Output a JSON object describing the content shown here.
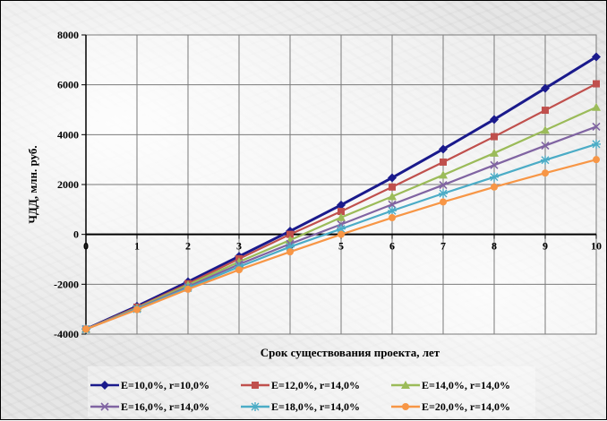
{
  "chart_data": {
    "type": "line",
    "title": "",
    "xlabel": "Срок существования проекта, лет",
    "ylabel": "ЧДД,  млн. руб.",
    "x": [
      0,
      1,
      2,
      3,
      4,
      5,
      6,
      7,
      8,
      9,
      10
    ],
    "xlim": [
      0,
      10
    ],
    "ylim": [
      -4000,
      8000
    ],
    "yticks": [
      -4000,
      -2000,
      0,
      2000,
      4000,
      6000,
      8000
    ],
    "grid": true,
    "legend_position": "bottom",
    "series": [
      {
        "name": "E=10,0%, r=10,0%",
        "color": "#1a1a8c",
        "marker": "diamond",
        "values": [
          -3800,
          -2880,
          -1900,
          -880,
          130,
          1180,
          2270,
          3420,
          4610,
          5860,
          7120
        ]
      },
      {
        "name": "E=12,0%, r=14,0%",
        "color": "#c0504d",
        "marker": "square",
        "values": [
          -3800,
          -2920,
          -1980,
          -980,
          0,
          920,
          1900,
          2900,
          3920,
          4980,
          6040
        ]
      },
      {
        "name": "E=14,0%, r=14,0%",
        "color": "#9bbb59",
        "marker": "triangle",
        "values": [
          -3800,
          -2950,
          -2030,
          -1100,
          -230,
          680,
          1520,
          2380,
          3260,
          4180,
          5100
        ]
      },
      {
        "name": "E=16,0%, r=14,0%",
        "color": "#8064a2",
        "marker": "x",
        "values": [
          -3800,
          -2980,
          -2100,
          -1200,
          -380,
          400,
          1200,
          1980,
          2780,
          3560,
          4320
        ]
      },
      {
        "name": "E=18,0%, r=14,0%",
        "color": "#4bacc6",
        "marker": "star",
        "values": [
          -3800,
          -3000,
          -2150,
          -1300,
          -500,
          220,
          950,
          1640,
          2300,
          2980,
          3620
        ]
      },
      {
        "name": "E=20,0%, r=14,0%",
        "color": "#f79646",
        "marker": "circle",
        "values": [
          -3800,
          -3020,
          -2200,
          -1420,
          -700,
          0,
          670,
          1300,
          1900,
          2460,
          3000
        ]
      }
    ]
  }
}
